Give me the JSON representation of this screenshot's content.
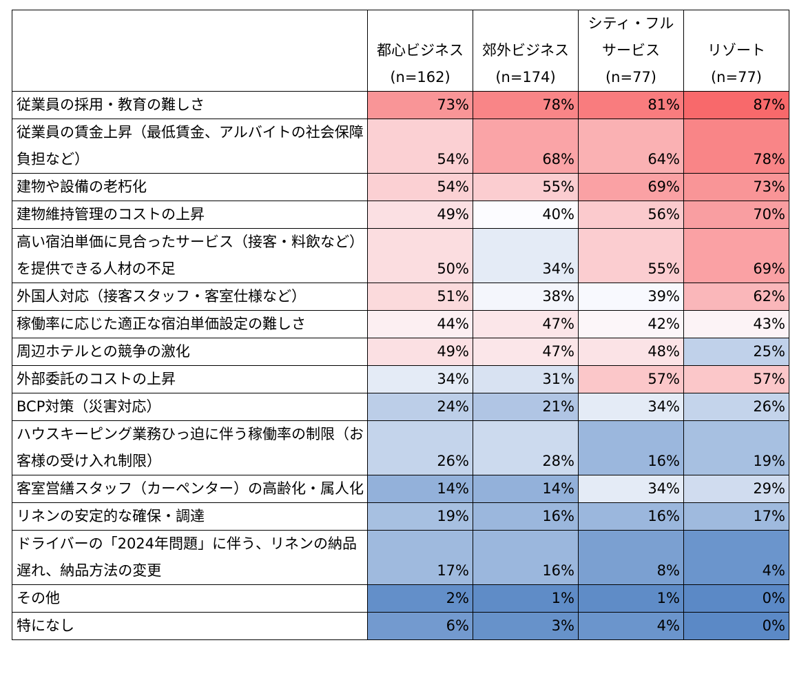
{
  "chart_data": {
    "type": "heatmap",
    "columns": [
      {
        "name": "都心ビジネス",
        "lines": [
          "",
          "都心ビジネス",
          "(n=162)"
        ]
      },
      {
        "name": "郊外ビジネス",
        "lines": [
          "",
          "郊外ビジネス",
          "(n=174)"
        ]
      },
      {
        "name": "シティ・フルサービス",
        "lines": [
          "シティ・フル",
          "サービス",
          "(n=77)"
        ]
      },
      {
        "name": "リゾート",
        "lines": [
          "",
          "リゾート",
          "(n=77)"
        ]
      }
    ],
    "rows": [
      {
        "label": "従業員の採用・教育の難しさ",
        "values": [
          73,
          78,
          81,
          87
        ]
      },
      {
        "label": "従業員の賃金上昇（最低賃金、アルバイトの社会保障負担など）",
        "values": [
          54,
          68,
          64,
          78
        ]
      },
      {
        "label": "建物や設備の老朽化",
        "values": [
          54,
          55,
          69,
          73
        ]
      },
      {
        "label": "建物維持管理のコストの上昇",
        "values": [
          49,
          40,
          56,
          70
        ]
      },
      {
        "label": "高い宿泊単価に見合ったサービス（接客・料飲など）を提供できる人材の不足",
        "values": [
          50,
          34,
          55,
          69
        ]
      },
      {
        "label": "外国人対応（接客スタッフ・客室仕様など）",
        "values": [
          51,
          38,
          39,
          62
        ]
      },
      {
        "label": "稼働率に応じた適正な宿泊単価設定の難しさ",
        "values": [
          44,
          47,
          42,
          43
        ]
      },
      {
        "label": "周辺ホテルとの競争の激化",
        "values": [
          49,
          47,
          48,
          25
        ]
      },
      {
        "label": "外部委託のコストの上昇",
        "values": [
          34,
          31,
          57,
          57
        ]
      },
      {
        "label": "BCP対策（災害対応）",
        "values": [
          24,
          21,
          34,
          26
        ]
      },
      {
        "label": "ハウスキーピング業務ひっ迫に伴う稼働率の制限（お客様の受け入れ制限）",
        "values": [
          26,
          28,
          16,
          19
        ]
      },
      {
        "label": "客室営繕スタッフ（カーペンター）の高齢化・属人化",
        "values": [
          14,
          14,
          34,
          29
        ]
      },
      {
        "label": "リネンの安定的な確保・調達",
        "values": [
          19,
          16,
          16,
          17
        ]
      },
      {
        "label": "ドライバーの「2024年問題」に伴う、リネンの納品遅れ、納品方法の変更",
        "values": [
          17,
          16,
          8,
          4
        ]
      },
      {
        "label": "その他",
        "values": [
          2,
          1,
          1,
          0
        ]
      },
      {
        "label": "特になし",
        "values": [
          6,
          3,
          4,
          0
        ]
      }
    ],
    "unit": "%",
    "color_scale": {
      "low": "#5b89c6",
      "mid": "#fcfcff",
      "high": "#f8696b",
      "low_value": 0,
      "mid_value": 40,
      "high_value": 87
    }
  }
}
